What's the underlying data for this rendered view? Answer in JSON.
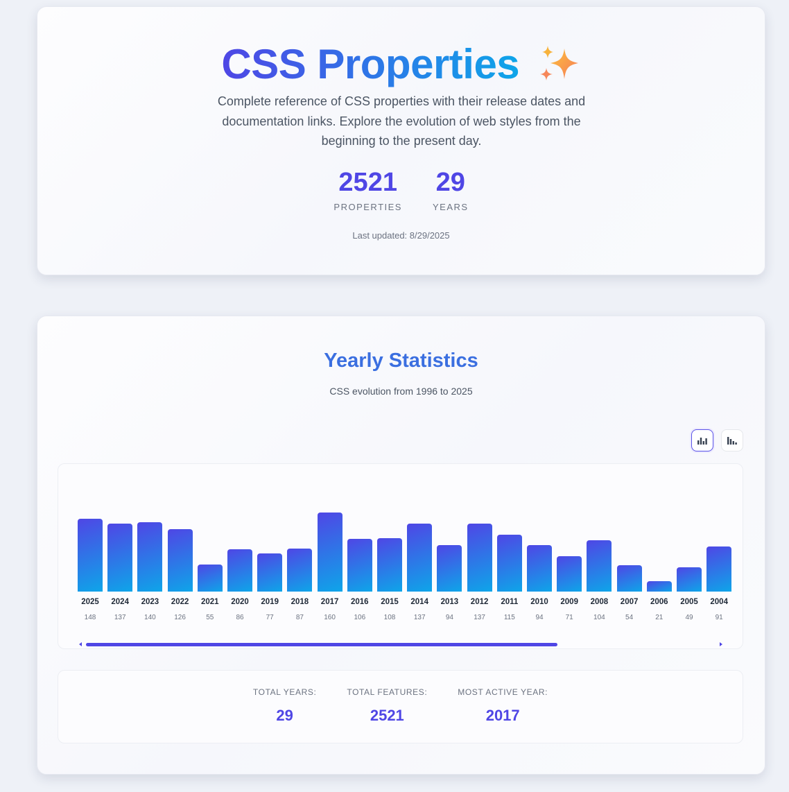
{
  "hero": {
    "title": "CSS Properties",
    "icon": "sparkles-icon",
    "description": "Complete reference of CSS properties with their release dates and documentation links. Explore the evolution of web styles from the beginning to the present day.",
    "stats": [
      {
        "value": "2521",
        "label": "PROPERTIES"
      },
      {
        "value": "29",
        "label": "YEARS"
      }
    ],
    "last_updated": "Last updated: 8/29/2025"
  },
  "stats": {
    "title": "Yearly Statistics",
    "subtitle": "CSS evolution from 1996 to 2025",
    "view_toggle": [
      {
        "icon": "bar-chart-icon",
        "active": true
      },
      {
        "icon": "bar-chart-descending-icon",
        "active": false
      }
    ],
    "summary": [
      {
        "label": "TOTAL YEARS:",
        "value": "29"
      },
      {
        "label": "TOTAL FEATURES:",
        "value": "2521"
      },
      {
        "label": "MOST ACTIVE YEAR:",
        "value": "2017"
      }
    ]
  },
  "colors": {
    "accent": "#4f46e5",
    "accent_end": "#0ea5e9"
  },
  "chart_data": {
    "type": "bar",
    "categories": [
      "2025",
      "2024",
      "2023",
      "2022",
      "2021",
      "2020",
      "2019",
      "2018",
      "2017",
      "2016",
      "2015",
      "2014",
      "2013",
      "2012",
      "2011",
      "2010",
      "2009",
      "2008",
      "2007",
      "2006",
      "2005",
      "2004"
    ],
    "values": [
      148,
      137,
      140,
      126,
      55,
      86,
      77,
      87,
      160,
      106,
      108,
      137,
      94,
      137,
      115,
      94,
      71,
      104,
      54,
      21,
      49,
      91
    ],
    "ylim": [
      0,
      160
    ],
    "grid": false
  }
}
